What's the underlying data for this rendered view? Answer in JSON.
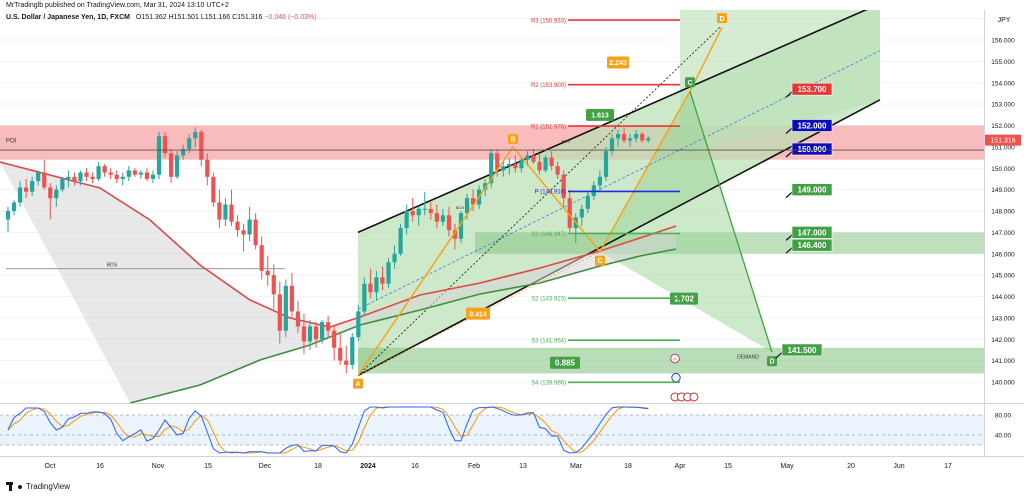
{
  "header": {
    "author": "MrTradinglb published on TradingView.com, Mar 31, 2024 13:10 UTC+2",
    "symbol": "U.S. Dollar / Japanese Yen, 1D, FXCM",
    "open_label": "O",
    "open": "151.362",
    "high_label": "H",
    "high": "151.501",
    "low_label": "L",
    "low": "151.166",
    "close_label": "C",
    "close": "151.316",
    "change": "−0.046 (−0.03%)"
  },
  "footer": {
    "brand": "TradingView"
  },
  "colors": {
    "up": "#26a69a",
    "down": "#ef5350",
    "channel_fill": "#b9e0b4",
    "poi_fill": "#f7a6a6",
    "orange": "#f7a21b",
    "green_box": "#43a047",
    "blue_box": "#0d0db8",
    "red_box": "#e53935",
    "pivot_red": "#e53935",
    "pivot_green": "#4caf50",
    "pivot_blue": "#1e2ae0",
    "ema_red": "#e04848",
    "ema_green": "#3e8f3e"
  },
  "chart_data": {
    "type": "candlestick",
    "instrument": "USD/JPY",
    "timeframe": "1D",
    "y_axis": {
      "currency": "JPY",
      "ylim": [
        139.2,
        157.6
      ],
      "ticks": [
        "156.000",
        "155.000",
        "154.000",
        "153.000",
        "152.000",
        "151.000",
        "150.000",
        "149.000",
        "148.000",
        "147.000",
        "146.000",
        "145.000",
        "144.000",
        "143.000",
        "142.000",
        "141.000",
        "140.000"
      ],
      "last_price": "151.316"
    },
    "x_axis": {
      "ticks": [
        "Oct",
        "16",
        "Nov",
        "15",
        "Dec",
        "18",
        "2024",
        "16",
        "Feb",
        "13",
        "Mar",
        "18",
        "Apr",
        "15",
        "May",
        "20",
        "Jun",
        "17"
      ]
    },
    "candles_ohlc": [
      [
        147.6,
        148.2,
        147.0,
        148.0
      ],
      [
        148.0,
        148.5,
        147.8,
        148.4
      ],
      [
        148.4,
        149.4,
        148.2,
        149.1
      ],
      [
        149.1,
        149.5,
        148.6,
        148.9
      ],
      [
        148.9,
        149.6,
        148.7,
        149.4
      ],
      [
        149.4,
        149.9,
        149.2,
        149.8
      ],
      [
        149.8,
        150.4,
        149.0,
        149.1
      ],
      [
        149.1,
        149.3,
        147.6,
        148.6
      ],
      [
        148.6,
        149.2,
        148.2,
        149.0
      ],
      [
        149.0,
        149.6,
        148.9,
        149.5
      ],
      [
        149.5,
        149.9,
        149.1,
        149.6
      ],
      [
        149.6,
        149.8,
        149.2,
        149.4
      ],
      [
        149.4,
        149.9,
        149.2,
        149.8
      ],
      [
        149.8,
        150.0,
        149.4,
        149.6
      ],
      [
        149.6,
        149.8,
        149.3,
        149.5
      ],
      [
        149.5,
        150.3,
        149.4,
        150.1
      ],
      [
        150.1,
        150.2,
        149.6,
        149.8
      ],
      [
        149.8,
        150.0,
        149.5,
        149.7
      ],
      [
        149.7,
        149.9,
        149.3,
        149.5
      ],
      [
        149.5,
        149.8,
        149.2,
        149.6
      ],
      [
        149.6,
        150.1,
        149.4,
        149.9
      ],
      [
        149.9,
        150.0,
        149.6,
        149.7
      ],
      [
        149.7,
        149.9,
        149.5,
        149.8
      ],
      [
        149.8,
        150.0,
        149.4,
        149.5
      ],
      [
        149.5,
        149.9,
        149.3,
        149.7
      ],
      [
        149.7,
        151.7,
        149.5,
        151.5
      ],
      [
        151.5,
        151.7,
        150.5,
        150.7
      ],
      [
        150.7,
        150.9,
        149.3,
        149.6
      ],
      [
        149.6,
        150.8,
        149.5,
        150.6
      ],
      [
        150.6,
        151.1,
        150.4,
        150.9
      ],
      [
        150.9,
        151.6,
        150.7,
        151.4
      ],
      [
        151.4,
        151.9,
        151.0,
        151.7
      ],
      [
        151.7,
        151.8,
        150.1,
        150.4
      ],
      [
        150.4,
        150.7,
        149.2,
        149.6
      ],
      [
        149.6,
        149.8,
        148.2,
        148.4
      ],
      [
        148.4,
        149.0,
        147.2,
        147.6
      ],
      [
        147.6,
        148.6,
        147.3,
        148.3
      ],
      [
        148.3,
        149.0,
        147.3,
        147.5
      ],
      [
        147.5,
        147.8,
        146.8,
        147.1
      ],
      [
        147.1,
        147.4,
        146.1,
        146.9
      ],
      [
        146.9,
        148.2,
        146.6,
        147.6
      ],
      [
        147.6,
        147.9,
        146.2,
        146.4
      ],
      [
        146.4,
        146.8,
        144.8,
        145.2
      ],
      [
        145.2,
        145.9,
        144.5,
        145.0
      ],
      [
        145.0,
        145.5,
        143.4,
        144.1
      ],
      [
        144.1,
        144.7,
        141.8,
        142.4
      ],
      [
        142.4,
        144.8,
        142.1,
        144.5
      ],
      [
        144.5,
        145.1,
        143.0,
        143.3
      ],
      [
        143.3,
        143.8,
        142.3,
        142.6
      ],
      [
        142.6,
        143.2,
        141.3,
        141.9
      ],
      [
        141.9,
        142.9,
        141.5,
        142.6
      ],
      [
        142.6,
        142.8,
        141.6,
        142.0
      ],
      [
        142.0,
        142.9,
        141.8,
        142.8
      ],
      [
        142.8,
        143.1,
        142.1,
        142.4
      ],
      [
        142.4,
        142.6,
        141.0,
        141.6
      ],
      [
        141.6,
        142.3,
        140.8,
        141.0
      ],
      [
        141.0,
        141.7,
        140.4,
        140.8
      ],
      [
        140.8,
        142.3,
        140.6,
        142.1
      ],
      [
        142.1,
        143.6,
        141.9,
        143.3
      ],
      [
        143.3,
        144.9,
        143.1,
        144.6
      ],
      [
        144.6,
        145.3,
        143.9,
        144.2
      ],
      [
        144.2,
        145.2,
        143.8,
        144.9
      ],
      [
        144.9,
        145.4,
        144.3,
        144.6
      ],
      [
        144.6,
        145.8,
        144.4,
        145.6
      ],
      [
        145.6,
        146.4,
        145.3,
        146.0
      ],
      [
        146.0,
        147.4,
        145.9,
        147.2
      ],
      [
        147.2,
        148.3,
        146.9,
        148.0
      ],
      [
        148.0,
        148.6,
        147.5,
        147.8
      ],
      [
        147.8,
        148.2,
        147.3,
        148.1
      ],
      [
        148.1,
        148.9,
        147.8,
        148.1
      ],
      [
        148.1,
        148.4,
        147.6,
        147.9
      ],
      [
        147.9,
        148.3,
        147.2,
        147.5
      ],
      [
        147.5,
        148.1,
        147.3,
        147.8
      ],
      [
        147.8,
        148.2,
        146.8,
        147.1
      ],
      [
        147.1,
        147.4,
        146.2,
        146.7
      ],
      [
        146.7,
        148.0,
        146.5,
        147.9
      ],
      [
        147.9,
        148.8,
        147.6,
        148.6
      ],
      [
        148.6,
        149.0,
        148.0,
        148.3
      ],
      [
        148.3,
        149.2,
        148.1,
        149.0
      ],
      [
        149.0,
        149.5,
        148.7,
        149.3
      ],
      [
        149.3,
        150.9,
        149.1,
        150.7
      ],
      [
        150.7,
        150.9,
        149.6,
        149.9
      ],
      [
        149.9,
        150.4,
        149.6,
        150.1
      ],
      [
        150.1,
        150.5,
        149.7,
        150.2
      ],
      [
        150.2,
        150.6,
        149.8,
        150.0
      ],
      [
        150.0,
        150.5,
        149.8,
        150.4
      ],
      [
        150.4,
        150.8,
        150.1,
        150.6
      ],
      [
        150.6,
        150.9,
        150.2,
        150.3
      ],
      [
        150.3,
        150.7,
        149.7,
        149.9
      ],
      [
        149.9,
        150.6,
        149.8,
        150.5
      ],
      [
        150.5,
        150.8,
        149.9,
        150.1
      ],
      [
        150.1,
        150.3,
        149.5,
        149.7
      ],
      [
        149.7,
        149.9,
        148.2,
        148.6
      ],
      [
        148.6,
        149.0,
        147.0,
        147.2
      ],
      [
        147.2,
        147.9,
        146.5,
        147.7
      ],
      [
        147.7,
        148.3,
        147.3,
        148.1
      ],
      [
        148.1,
        148.9,
        147.9,
        148.7
      ],
      [
        148.7,
        149.4,
        148.5,
        149.2
      ],
      [
        149.2,
        149.9,
        148.9,
        149.6
      ],
      [
        149.6,
        151.0,
        149.4,
        150.8
      ],
      [
        150.8,
        151.6,
        150.6,
        151.4
      ],
      [
        151.4,
        151.8,
        151.0,
        151.6
      ],
      [
        151.6,
        151.9,
        151.2,
        151.3
      ],
      [
        151.3,
        151.6,
        151.0,
        151.4
      ],
      [
        151.4,
        151.8,
        151.2,
        151.6
      ],
      [
        151.6,
        151.7,
        151.2,
        151.3
      ],
      [
        151.3,
        151.5,
        151.2,
        151.4
      ]
    ],
    "pivot_levels": [
      {
        "label": "R3 (156.933)",
        "value": 156.933,
        "color": "red"
      },
      {
        "label": "R2 (153.909)",
        "value": 153.909,
        "color": "red"
      },
      {
        "label": "R1 (151.976)",
        "value": 151.976,
        "color": "red"
      },
      {
        "label": "P (148.916)",
        "value": 148.916,
        "color": "blue"
      },
      {
        "label": "S1 (146.947)",
        "value": 146.947,
        "color": "green"
      },
      {
        "label": "S2 (143.923)",
        "value": 143.923,
        "color": "green"
      },
      {
        "label": "S3 (141.954)",
        "value": 141.954,
        "color": "green"
      },
      {
        "label": "S4 (139.986)",
        "value": 139.986,
        "color": "green"
      }
    ],
    "price_boxes": [
      {
        "label": "153.700",
        "value": 153.7,
        "color": "red"
      },
      {
        "label": "152.000",
        "value": 152.0,
        "color": "blue"
      },
      {
        "label": "150.900",
        "value": 150.9,
        "color": "blue"
      },
      {
        "label": "149.000",
        "value": 149.0,
        "color": "green"
      },
      {
        "label": "147.000",
        "value": 147.0,
        "color": "green"
      },
      {
        "label": "146.400",
        "value": 146.4,
        "color": "green"
      },
      {
        "label": "141.500",
        "value": 141.5,
        "color": "green"
      }
    ],
    "harmonic_points": [
      {
        "label": "A",
        "value": 140.3
      },
      {
        "label": "B",
        "value": 151.0
      },
      {
        "label": "C",
        "value": 153.6
      },
      {
        "label": "C",
        "value": 146.1
      },
      {
        "label": "D",
        "value": 156.6
      },
      {
        "label": "D",
        "value": 141.4
      }
    ],
    "ratios": [
      "2.243",
      "1.613",
      "0.414",
      "1.702",
      "0.885"
    ],
    "annotations": [
      "POI",
      "BOS",
      "DEMAND",
      "BOS",
      "BOS",
      "DEMAND"
    ],
    "stochastic": {
      "levels": [
        "80.00",
        "40.00"
      ]
    }
  }
}
